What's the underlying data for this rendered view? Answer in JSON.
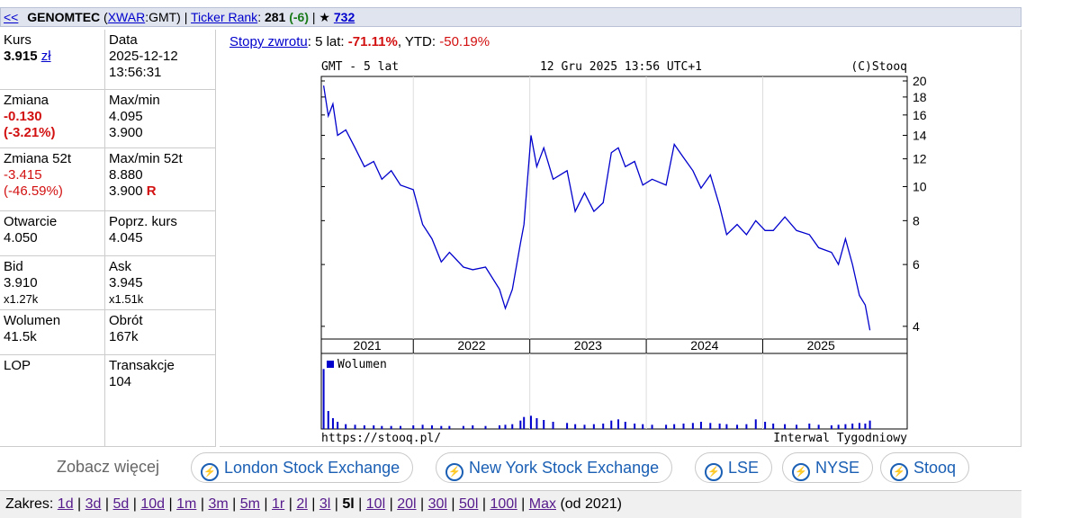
{
  "nav": {
    "back": "<<",
    "name": "GENOMTEC",
    "paren_open": "(",
    "exchange": "XWAR",
    "symbol_tail": ":GMT)",
    "bar": "|",
    "rank_label": "Ticker Rank",
    "colon": ":",
    "rank": "281",
    "rank_change": "(-6)",
    "star": "★",
    "stars": "732"
  },
  "quote": {
    "kurs": {
      "label": "Kurs",
      "value": "3.915",
      "unit": "zł"
    },
    "data": {
      "label": "Data",
      "date": "2025-12-12",
      "time": "13:56:31"
    },
    "zmiana": {
      "label": "Zmiana",
      "value": "-0.130",
      "percent": "(-3.21%)"
    },
    "maxmin": {
      "label": "Max/min",
      "max": "4.095",
      "min": "3.900"
    },
    "zmiana52": {
      "label": "Zmiana 52t",
      "value": "-3.415",
      "percent": "(-46.59%)"
    },
    "maxmin52": {
      "label": "Max/min 52t",
      "max": "8.880",
      "min": "3.900",
      "flag": "R"
    },
    "otwarcie": {
      "label": "Otwarcie",
      "value": "4.050"
    },
    "poprz": {
      "label": "Poprz. kurs",
      "value": "4.045"
    },
    "bid": {
      "label": "Bid",
      "value": "3.910",
      "size": "x1.27k"
    },
    "ask": {
      "label": "Ask",
      "value": "3.945",
      "size": "x1.51k"
    },
    "wolumen": {
      "label": "Wolumen",
      "value": "41.5k"
    },
    "obrot": {
      "label": "Obrót",
      "value": "167k"
    },
    "lop": {
      "label": "LOP"
    },
    "transakcje": {
      "label": "Transakcje",
      "value": "104"
    }
  },
  "returns": {
    "label": "Stopy zwrotu",
    "colon": ":",
    "period": "5 lat:",
    "five_year": "-71.11%",
    "sep": ",",
    "ytd_label": "YTD:",
    "ytd": "-50.19%"
  },
  "chart_header": {
    "left": "GMT - 5 lat",
    "center": "12 Gru 2025 13:56 UTC+1",
    "right": "(C)Stooq"
  },
  "chart_footer": {
    "left": "https://stooq.pl/",
    "right": "Interwal Tygodniowy"
  },
  "chart_data": [
    {
      "type": "line",
      "color": "#0000cc",
      "log_scale": true,
      "x": [
        2021.23,
        2021.27,
        2021.31,
        2021.35,
        2021.42,
        2021.5,
        2021.58,
        2021.66,
        2021.73,
        2021.81,
        2021.89,
        2022.0,
        2022.08,
        2022.16,
        2022.24,
        2022.31,
        2022.43,
        2022.51,
        2022.62,
        2022.74,
        2022.79,
        2022.85,
        2022.92,
        2022.95,
        2023.01,
        2023.06,
        2023.12,
        2023.2,
        2023.32,
        2023.39,
        2023.47,
        2023.55,
        2023.63,
        2023.7,
        2023.76,
        2023.82,
        2023.9,
        2023.97,
        2024.05,
        2024.17,
        2024.24,
        2024.32,
        2024.4,
        2024.47,
        2024.55,
        2024.63,
        2024.69,
        2024.78,
        2024.86,
        2024.94,
        2025.02,
        2025.09,
        2025.19,
        2025.29,
        2025.4,
        2025.48,
        2025.59,
        2025.65,
        2025.71,
        2025.77,
        2025.83,
        2025.88,
        2025.92
      ],
      "values": [
        19.4,
        15.9,
        17.2,
        14.0,
        14.5,
        12.9,
        11.4,
        11.8,
        10.5,
        11.1,
        10.1,
        9.8,
        7.8,
        7.1,
        6.1,
        6.5,
        5.9,
        5.8,
        5.9,
        5.1,
        4.5,
        5.1,
        6.9,
        7.8,
        14.0,
        11.4,
        12.9,
        10.5,
        11.1,
        8.5,
        9.6,
        8.5,
        9.0,
        12.5,
        12.9,
        11.4,
        11.8,
        10.1,
        10.5,
        10.1,
        13.2,
        12.1,
        11.1,
        9.9,
        10.8,
        8.8,
        7.3,
        7.8,
        7.3,
        8.0,
        7.5,
        7.5,
        8.2,
        7.5,
        7.3,
        6.7,
        6.5,
        6.0,
        7.1,
        6.0,
        4.9,
        4.6,
        3.9
      ],
      "xlim": [
        2021.21,
        2026.24
      ],
      "ylim": [
        3.68,
        20.6
      ],
      "yticks": [
        4,
        6,
        8,
        10,
        12,
        14,
        16,
        18,
        20
      ],
      "year_labels": [
        {
          "value": 2021,
          "label": "2021"
        },
        {
          "value": 2022,
          "label": "2022"
        },
        {
          "value": 2023,
          "label": "2023"
        },
        {
          "value": 2024,
          "label": "2024"
        },
        {
          "value": 2025,
          "label": "2025"
        }
      ]
    },
    {
      "type": "bar",
      "legend": "Wolumen",
      "color": "#0000cc",
      "x": [
        2021.23,
        2021.27,
        2021.31,
        2021.35,
        2021.42,
        2021.5,
        2021.58,
        2021.66,
        2021.73,
        2021.81,
        2021.89,
        2022.0,
        2022.08,
        2022.16,
        2022.24,
        2022.31,
        2022.43,
        2022.51,
        2022.62,
        2022.74,
        2022.79,
        2022.85,
        2022.92,
        2022.95,
        2023.01,
        2023.06,
        2023.12,
        2023.2,
        2023.32,
        2023.39,
        2023.47,
        2023.55,
        2023.63,
        2023.7,
        2023.76,
        2023.82,
        2023.9,
        2023.97,
        2024.05,
        2024.17,
        2024.24,
        2024.32,
        2024.4,
        2024.47,
        2024.55,
        2024.63,
        2024.69,
        2024.78,
        2024.86,
        2024.94,
        2025.02,
        2025.09,
        2025.19,
        2025.29,
        2025.4,
        2025.48,
        2025.59,
        2025.65,
        2025.71,
        2025.77,
        2025.83,
        2025.88,
        2025.92
      ],
      "values": [
        100,
        30,
        18,
        12,
        8,
        7,
        6,
        6,
        5,
        5,
        5,
        6,
        7,
        6,
        5,
        5,
        5,
        6,
        5,
        6,
        7,
        8,
        14,
        20,
        22,
        18,
        15,
        12,
        10,
        8,
        7,
        8,
        9,
        14,
        16,
        12,
        9,
        8,
        7,
        7,
        8,
        9,
        10,
        12,
        10,
        9,
        8,
        7,
        8,
        16,
        12,
        9,
        8,
        7,
        9,
        7,
        6,
        7,
        8,
        9,
        10,
        9,
        14
      ],
      "xlim": [
        2021.21,
        2026.24
      ],
      "ylim": [
        0,
        120
      ]
    }
  ],
  "more": {
    "label": "Zobacz więcej",
    "buttons": [
      "London Stock Exchange",
      "New York Stock Exchange",
      "LSE",
      "NYSE",
      "Stooq"
    ]
  },
  "range": {
    "label": "Zakres:",
    "separator": "|",
    "items": [
      "1d",
      "3d",
      "5d",
      "10d",
      "1m",
      "3m",
      "5m",
      "1r",
      "2l",
      "3l",
      "5l",
      "10l",
      "20l",
      "30l",
      "50l",
      "100l",
      "Max"
    ],
    "selected": 10,
    "note": "(od 2021)"
  }
}
